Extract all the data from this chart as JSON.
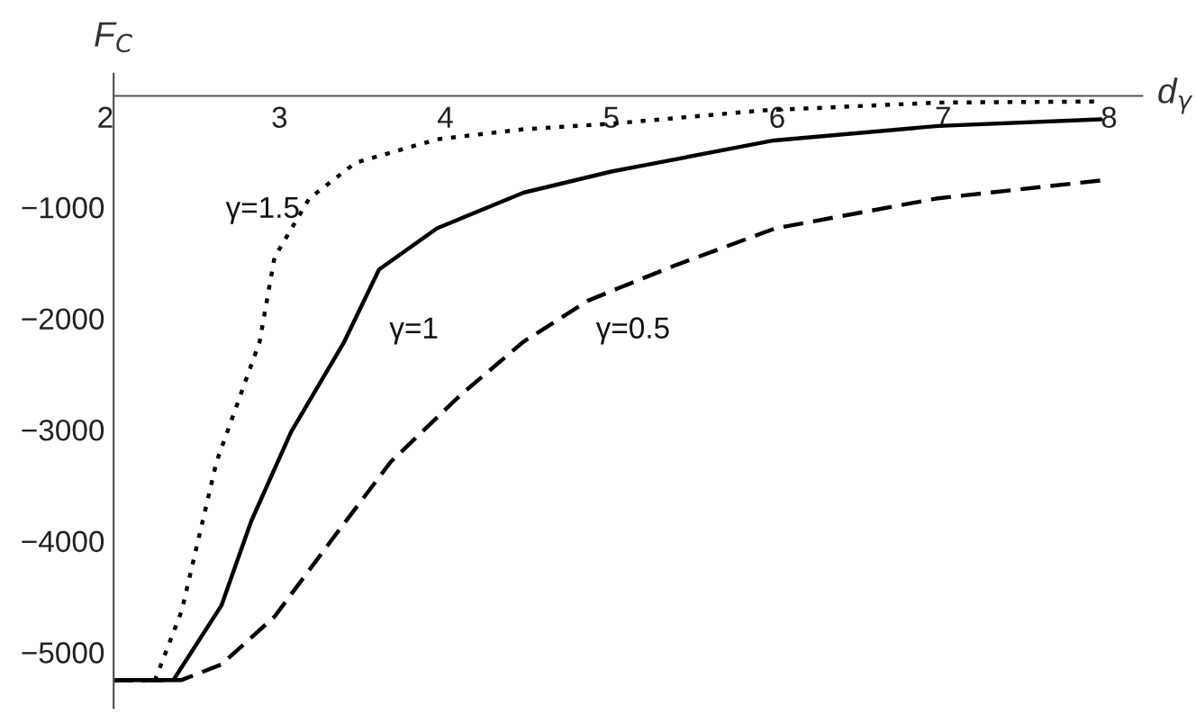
{
  "chart_data": {
    "type": "line",
    "xlabel": "d$_{γ}$",
    "ylabel": "F$_{C}$",
    "xlim": [
      2,
      8.2
    ],
    "ylim": [
      -5500,
      200
    ],
    "xticks": [
      2,
      3,
      4,
      5,
      6,
      7,
      8
    ],
    "yticks": [
      -5000,
      -4000,
      -3000,
      -2000,
      -1000
    ],
    "grid": false,
    "legend": false,
    "series": [
      {
        "color": "#000000",
        "line_style": "dotted",
        "x": [
          2,
          2.25,
          2.41,
          2.62,
          2.88,
          2.97,
          3.18,
          3.46,
          3.95,
          4.47,
          5.0,
          5.92,
          6.97,
          7.95
        ],
        "values": [
          -5250,
          -5250,
          -4630,
          -3290,
          -2210,
          -1450,
          -920,
          -600,
          -390,
          -300,
          -250,
          -130,
          -60,
          -50
        ]
      },
      {
        "color": "#000000",
        "line_style": "solid",
        "x": [
          2,
          2.36,
          2.65,
          2.83,
          3.07,
          3.39,
          3.6,
          3.95,
          4.47,
          5.0,
          5.21,
          5.98,
          6.97,
          7.95
        ],
        "values": [
          -5250,
          -5250,
          -4580,
          -3820,
          -3020,
          -2210,
          -1560,
          -1190,
          -870,
          -680,
          -620,
          -400,
          -270,
          -210
        ]
      },
      {
        "color": "#000000",
        "line_style": "dashed",
        "x": [
          2,
          2.41,
          2.65,
          2.97,
          3.32,
          3.67,
          4.09,
          4.47,
          4.86,
          5.04,
          5.39,
          5.99,
          6.97,
          7.95
        ],
        "values": [
          -5250,
          -5250,
          -5110,
          -4680,
          -3980,
          -3290,
          -2690,
          -2210,
          -1840,
          -1730,
          -1520,
          -1190,
          -920,
          -760
        ]
      }
    ],
    "annotations": [
      "γ=1.5",
      "γ=1",
      "γ=0.5"
    ]
  }
}
